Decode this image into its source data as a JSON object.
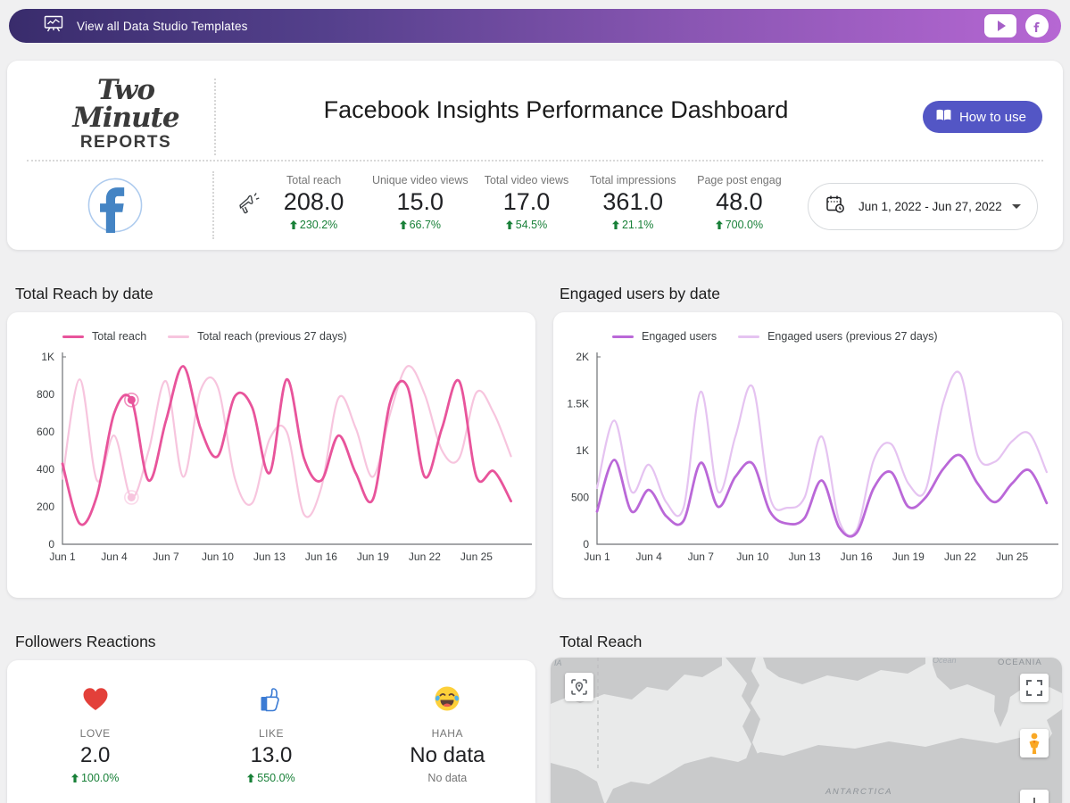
{
  "banner": {
    "label": "View all Data Studio Templates"
  },
  "header": {
    "logo_line1": "Two Minute",
    "logo_line2": "REPORTS",
    "title": "Facebook Insights Performance Dashboard",
    "how_to_use_label": "How to use"
  },
  "scorecards": {
    "items": [
      {
        "label": "Total reach",
        "value": "208.0",
        "delta": "230.2%"
      },
      {
        "label": "Unique video views",
        "value": "15.0",
        "delta": "66.7%"
      },
      {
        "label": "Total video views",
        "value": "17.0",
        "delta": "54.5%"
      },
      {
        "label": "Total impressions",
        "value": "361.0",
        "delta": "21.1%"
      },
      {
        "label": "Page post engag",
        "value": "48.0",
        "delta": "700.0%"
      }
    ]
  },
  "date_picker": {
    "value": "Jun 1, 2022 - Jun 27, 2022"
  },
  "sections": {
    "chart1_title": "Total Reach by date",
    "chart2_title": "Engaged users by date",
    "reactions_title": "Followers Reactions",
    "map_title": "Total Reach"
  },
  "reactions": {
    "items": [
      {
        "icon": "love-heart-icon",
        "label": "LOVE",
        "value": "2.0",
        "delta": "100.0%",
        "sub": ""
      },
      {
        "icon": "like-thumb-icon",
        "label": "LIKE",
        "value": "13.0",
        "delta": "550.0%",
        "sub": ""
      },
      {
        "icon": "haha-emoji-icon",
        "label": "HAHA",
        "value": "No data",
        "delta": "",
        "sub": "No data"
      }
    ]
  },
  "map": {
    "labels": {
      "top_left": "IA",
      "ocean": "Ocean",
      "oceania": "OCEANIA",
      "antarctica": "ANTARCTICA"
    }
  },
  "colors": {
    "positive_green": "#188038",
    "accent_button": "#5356c5",
    "facebook_blue": "#4484c4",
    "pink": "#e8549b",
    "pink_light": "#f7c5de",
    "purple": "#ba68d8",
    "purple_light": "#e5c3f1"
  },
  "chart_data": [
    {
      "type": "line",
      "title": "Total Reach by date",
      "x_tick_labels": [
        "Jun 1",
        "Jun 4",
        "Jun 7",
        "Jun 10",
        "Jun 13",
        "Jun 16",
        "Jun 19",
        "Jun 22",
        "Jun 25"
      ],
      "x_tick_days": [
        0,
        3,
        6,
        9,
        12,
        15,
        18,
        21,
        24
      ],
      "ylim": [
        0,
        1000
      ],
      "y_ticks": [
        {
          "value": 0,
          "label": "0"
        },
        {
          "value": 200,
          "label": "200"
        },
        {
          "value": 400,
          "label": "400"
        },
        {
          "value": 600,
          "label": "600"
        },
        {
          "value": 800,
          "label": "800"
        },
        {
          "value": 1000,
          "label": "1K"
        }
      ],
      "series": [
        {
          "name": "Total reach",
          "color": "#e8549b",
          "values": [
            430,
            110,
            260,
            700,
            770,
            340,
            660,
            950,
            620,
            470,
            790,
            730,
            380,
            880,
            460,
            340,
            580,
            380,
            240,
            760,
            840,
            360,
            620,
            870,
            360,
            390,
            230
          ]
        },
        {
          "name": "Total reach (previous 27 days)",
          "color": "#f7c5de",
          "values": [
            350,
            880,
            340,
            580,
            250,
            500,
            870,
            360,
            820,
            840,
            350,
            220,
            560,
            600,
            160,
            300,
            780,
            620,
            360,
            700,
            950,
            800,
            500,
            460,
            810,
            700,
            470
          ]
        }
      ],
      "markers": [
        {
          "series": 0,
          "day": 4
        },
        {
          "series": 1,
          "day": 4
        }
      ]
    },
    {
      "type": "line",
      "title": "Engaged users by date",
      "x_tick_labels": [
        "Jun 1",
        "Jun 4",
        "Jun 7",
        "Jun 10",
        "Jun 13",
        "Jun 16",
        "Jun 19",
        "Jun 22",
        "Jun 25"
      ],
      "x_tick_days": [
        0,
        3,
        6,
        9,
        12,
        15,
        18,
        21,
        24
      ],
      "ylim": [
        0,
        2000
      ],
      "y_ticks": [
        {
          "value": 0,
          "label": "0"
        },
        {
          "value": 500,
          "label": "500"
        },
        {
          "value": 1000,
          "label": "1K"
        },
        {
          "value": 1500,
          "label": "1.5K"
        },
        {
          "value": 2000,
          "label": "2K"
        }
      ],
      "series": [
        {
          "name": "Engaged users",
          "color": "#ba68d8",
          "values": [
            350,
            900,
            350,
            580,
            300,
            250,
            870,
            400,
            720,
            860,
            350,
            220,
            280,
            680,
            180,
            120,
            600,
            770,
            400,
            500,
            800,
            950,
            650,
            450,
            650,
            790,
            440
          ]
        },
        {
          "name": "Engaged users (previous 27 days)",
          "color": "#e5c3f1",
          "values": [
            600,
            1320,
            560,
            850,
            450,
            390,
            1630,
            560,
            1150,
            1680,
            500,
            390,
            500,
            1150,
            250,
            150,
            900,
            1070,
            650,
            580,
            1500,
            1820,
            950,
            880,
            1100,
            1180,
            770
          ]
        }
      ],
      "markers": []
    }
  ]
}
